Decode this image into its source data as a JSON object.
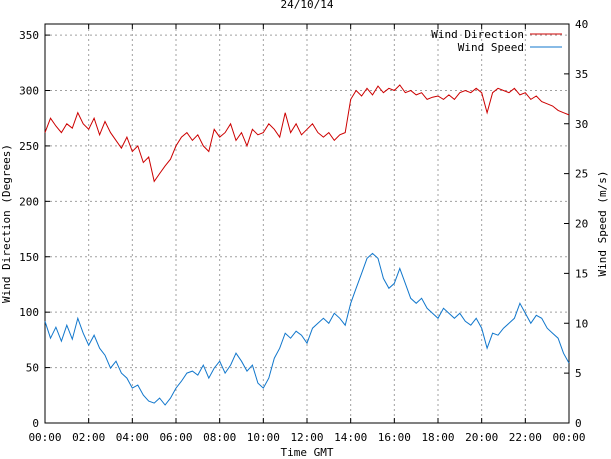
{
  "chart_data": {
    "type": "line",
    "title": "24/10/14",
    "xlabel": "Time GMT",
    "ylabel_left": "Wind Direction (Degrees)",
    "ylabel_right": "Wind Speed (m/s)",
    "x_range_hours": [
      0,
      24
    ],
    "x_tick_labels": [
      "00:00",
      "02:00",
      "04:00",
      "06:00",
      "08:00",
      "10:00",
      "12:00",
      "14:00",
      "16:00",
      "18:00",
      "20:00",
      "22:00",
      "00:00"
    ],
    "y_left_range": [
      0,
      360
    ],
    "y_left_ticks": [
      0,
      50,
      100,
      150,
      200,
      250,
      300,
      350
    ],
    "y_right_range": [
      0,
      40
    ],
    "y_right_ticks": [
      0,
      5,
      10,
      15,
      20,
      25,
      30,
      35,
      40
    ],
    "grid": true,
    "legend_position": "top-right",
    "series": [
      {
        "name": "Wind Direction",
        "axis": "left",
        "color": "#cc0000",
        "points": [
          [
            0.0,
            262
          ],
          [
            0.25,
            275
          ],
          [
            0.5,
            268
          ],
          [
            0.75,
            262
          ],
          [
            1.0,
            270
          ],
          [
            1.25,
            266
          ],
          [
            1.5,
            280
          ],
          [
            1.75,
            270
          ],
          [
            2.0,
            265
          ],
          [
            2.25,
            275
          ],
          [
            2.5,
            260
          ],
          [
            2.75,
            272
          ],
          [
            3.0,
            262
          ],
          [
            3.25,
            255
          ],
          [
            3.5,
            248
          ],
          [
            3.75,
            258
          ],
          [
            4.0,
            245
          ],
          [
            4.25,
            250
          ],
          [
            4.5,
            235
          ],
          [
            4.75,
            240
          ],
          [
            5.0,
            218
          ],
          [
            5.25,
            225
          ],
          [
            5.5,
            232
          ],
          [
            5.75,
            238
          ],
          [
            6.0,
            250
          ],
          [
            6.25,
            258
          ],
          [
            6.5,
            262
          ],
          [
            6.75,
            255
          ],
          [
            7.0,
            260
          ],
          [
            7.25,
            250
          ],
          [
            7.5,
            245
          ],
          [
            7.75,
            265
          ],
          [
            8.0,
            258
          ],
          [
            8.25,
            262
          ],
          [
            8.5,
            270
          ],
          [
            8.75,
            255
          ],
          [
            9.0,
            262
          ],
          [
            9.25,
            250
          ],
          [
            9.5,
            265
          ],
          [
            9.75,
            260
          ],
          [
            10.0,
            262
          ],
          [
            10.25,
            270
          ],
          [
            10.5,
            265
          ],
          [
            10.75,
            258
          ],
          [
            11.0,
            280
          ],
          [
            11.25,
            262
          ],
          [
            11.5,
            270
          ],
          [
            11.75,
            260
          ],
          [
            12.0,
            265
          ],
          [
            12.25,
            270
          ],
          [
            12.5,
            262
          ],
          [
            12.75,
            258
          ],
          [
            13.0,
            262
          ],
          [
            13.25,
            255
          ],
          [
            13.5,
            260
          ],
          [
            13.75,
            262
          ],
          [
            14.0,
            292
          ],
          [
            14.25,
            300
          ],
          [
            14.5,
            295
          ],
          [
            14.75,
            302
          ],
          [
            15.0,
            296
          ],
          [
            15.25,
            304
          ],
          [
            15.5,
            298
          ],
          [
            15.75,
            302
          ],
          [
            16.0,
            300
          ],
          [
            16.25,
            305
          ],
          [
            16.5,
            298
          ],
          [
            16.75,
            300
          ],
          [
            17.0,
            296
          ],
          [
            17.25,
            298
          ],
          [
            17.5,
            292
          ],
          [
            17.75,
            294
          ],
          [
            18.0,
            295
          ],
          [
            18.25,
            292
          ],
          [
            18.5,
            296
          ],
          [
            18.75,
            292
          ],
          [
            19.0,
            298
          ],
          [
            19.25,
            300
          ],
          [
            19.5,
            298
          ],
          [
            19.75,
            302
          ],
          [
            20.0,
            298
          ],
          [
            20.25,
            280
          ],
          [
            20.5,
            298
          ],
          [
            20.75,
            302
          ],
          [
            21.0,
            300
          ],
          [
            21.25,
            298
          ],
          [
            21.5,
            302
          ],
          [
            21.75,
            296
          ],
          [
            22.0,
            298
          ],
          [
            22.25,
            292
          ],
          [
            22.5,
            295
          ],
          [
            22.75,
            290
          ],
          [
            23.0,
            288
          ],
          [
            23.25,
            286
          ],
          [
            23.5,
            282
          ],
          [
            23.75,
            280
          ],
          [
            24.0,
            278
          ]
        ]
      },
      {
        "name": "Wind Speed",
        "axis": "right",
        "color": "#1177cc",
        "points": [
          [
            0.0,
            10.2
          ],
          [
            0.25,
            8.5
          ],
          [
            0.5,
            9.6
          ],
          [
            0.75,
            8.2
          ],
          [
            1.0,
            9.8
          ],
          [
            1.25,
            8.4
          ],
          [
            1.5,
            10.5
          ],
          [
            1.75,
            9.0
          ],
          [
            2.0,
            7.8
          ],
          [
            2.25,
            8.8
          ],
          [
            2.5,
            7.5
          ],
          [
            2.75,
            6.8
          ],
          [
            3.0,
            5.5
          ],
          [
            3.25,
            6.2
          ],
          [
            3.5,
            5.0
          ],
          [
            3.75,
            4.5
          ],
          [
            4.0,
            3.5
          ],
          [
            4.25,
            3.8
          ],
          [
            4.5,
            2.8
          ],
          [
            4.75,
            2.2
          ],
          [
            5.0,
            2.0
          ],
          [
            5.25,
            2.5
          ],
          [
            5.5,
            1.8
          ],
          [
            5.75,
            2.5
          ],
          [
            6.0,
            3.5
          ],
          [
            6.25,
            4.2
          ],
          [
            6.5,
            5.0
          ],
          [
            6.75,
            5.2
          ],
          [
            7.0,
            4.8
          ],
          [
            7.25,
            5.8
          ],
          [
            7.5,
            4.5
          ],
          [
            7.75,
            5.5
          ],
          [
            8.0,
            6.2
          ],
          [
            8.25,
            5.0
          ],
          [
            8.5,
            5.8
          ],
          [
            8.75,
            7.0
          ],
          [
            9.0,
            6.2
          ],
          [
            9.25,
            5.2
          ],
          [
            9.5,
            5.8
          ],
          [
            9.75,
            4.0
          ],
          [
            10.0,
            3.5
          ],
          [
            10.25,
            4.5
          ],
          [
            10.5,
            6.5
          ],
          [
            10.75,
            7.5
          ],
          [
            11.0,
            9.0
          ],
          [
            11.25,
            8.5
          ],
          [
            11.5,
            9.2
          ],
          [
            11.75,
            8.8
          ],
          [
            12.0,
            8.0
          ],
          [
            12.25,
            9.5
          ],
          [
            12.5,
            10.0
          ],
          [
            12.75,
            10.5
          ],
          [
            13.0,
            10.0
          ],
          [
            13.25,
            11.0
          ],
          [
            13.5,
            10.5
          ],
          [
            13.75,
            9.8
          ],
          [
            14.0,
            12.0
          ],
          [
            14.25,
            13.5
          ],
          [
            14.5,
            15.0
          ],
          [
            14.75,
            16.5
          ],
          [
            15.0,
            17.0
          ],
          [
            15.25,
            16.5
          ],
          [
            15.5,
            14.5
          ],
          [
            15.75,
            13.5
          ],
          [
            16.0,
            14.0
          ],
          [
            16.25,
            15.5
          ],
          [
            16.5,
            14.0
          ],
          [
            16.75,
            12.5
          ],
          [
            17.0,
            12.0
          ],
          [
            17.25,
            12.5
          ],
          [
            17.5,
            11.5
          ],
          [
            17.75,
            11.0
          ],
          [
            18.0,
            10.5
          ],
          [
            18.25,
            11.5
          ],
          [
            18.5,
            11.0
          ],
          [
            18.75,
            10.5
          ],
          [
            19.0,
            11.0
          ],
          [
            19.25,
            10.2
          ],
          [
            19.5,
            9.8
          ],
          [
            19.75,
            10.5
          ],
          [
            20.0,
            9.5
          ],
          [
            20.25,
            7.5
          ],
          [
            20.5,
            9.0
          ],
          [
            20.75,
            8.8
          ],
          [
            21.0,
            9.5
          ],
          [
            21.25,
            10.0
          ],
          [
            21.5,
            10.5
          ],
          [
            21.75,
            12.0
          ],
          [
            22.0,
            11.0
          ],
          [
            22.25,
            10.0
          ],
          [
            22.5,
            10.8
          ],
          [
            22.75,
            10.5
          ],
          [
            23.0,
            9.5
          ],
          [
            23.25,
            9.0
          ],
          [
            23.5,
            8.5
          ],
          [
            23.75,
            7.0
          ],
          [
            24.0,
            6.0
          ]
        ]
      }
    ]
  }
}
